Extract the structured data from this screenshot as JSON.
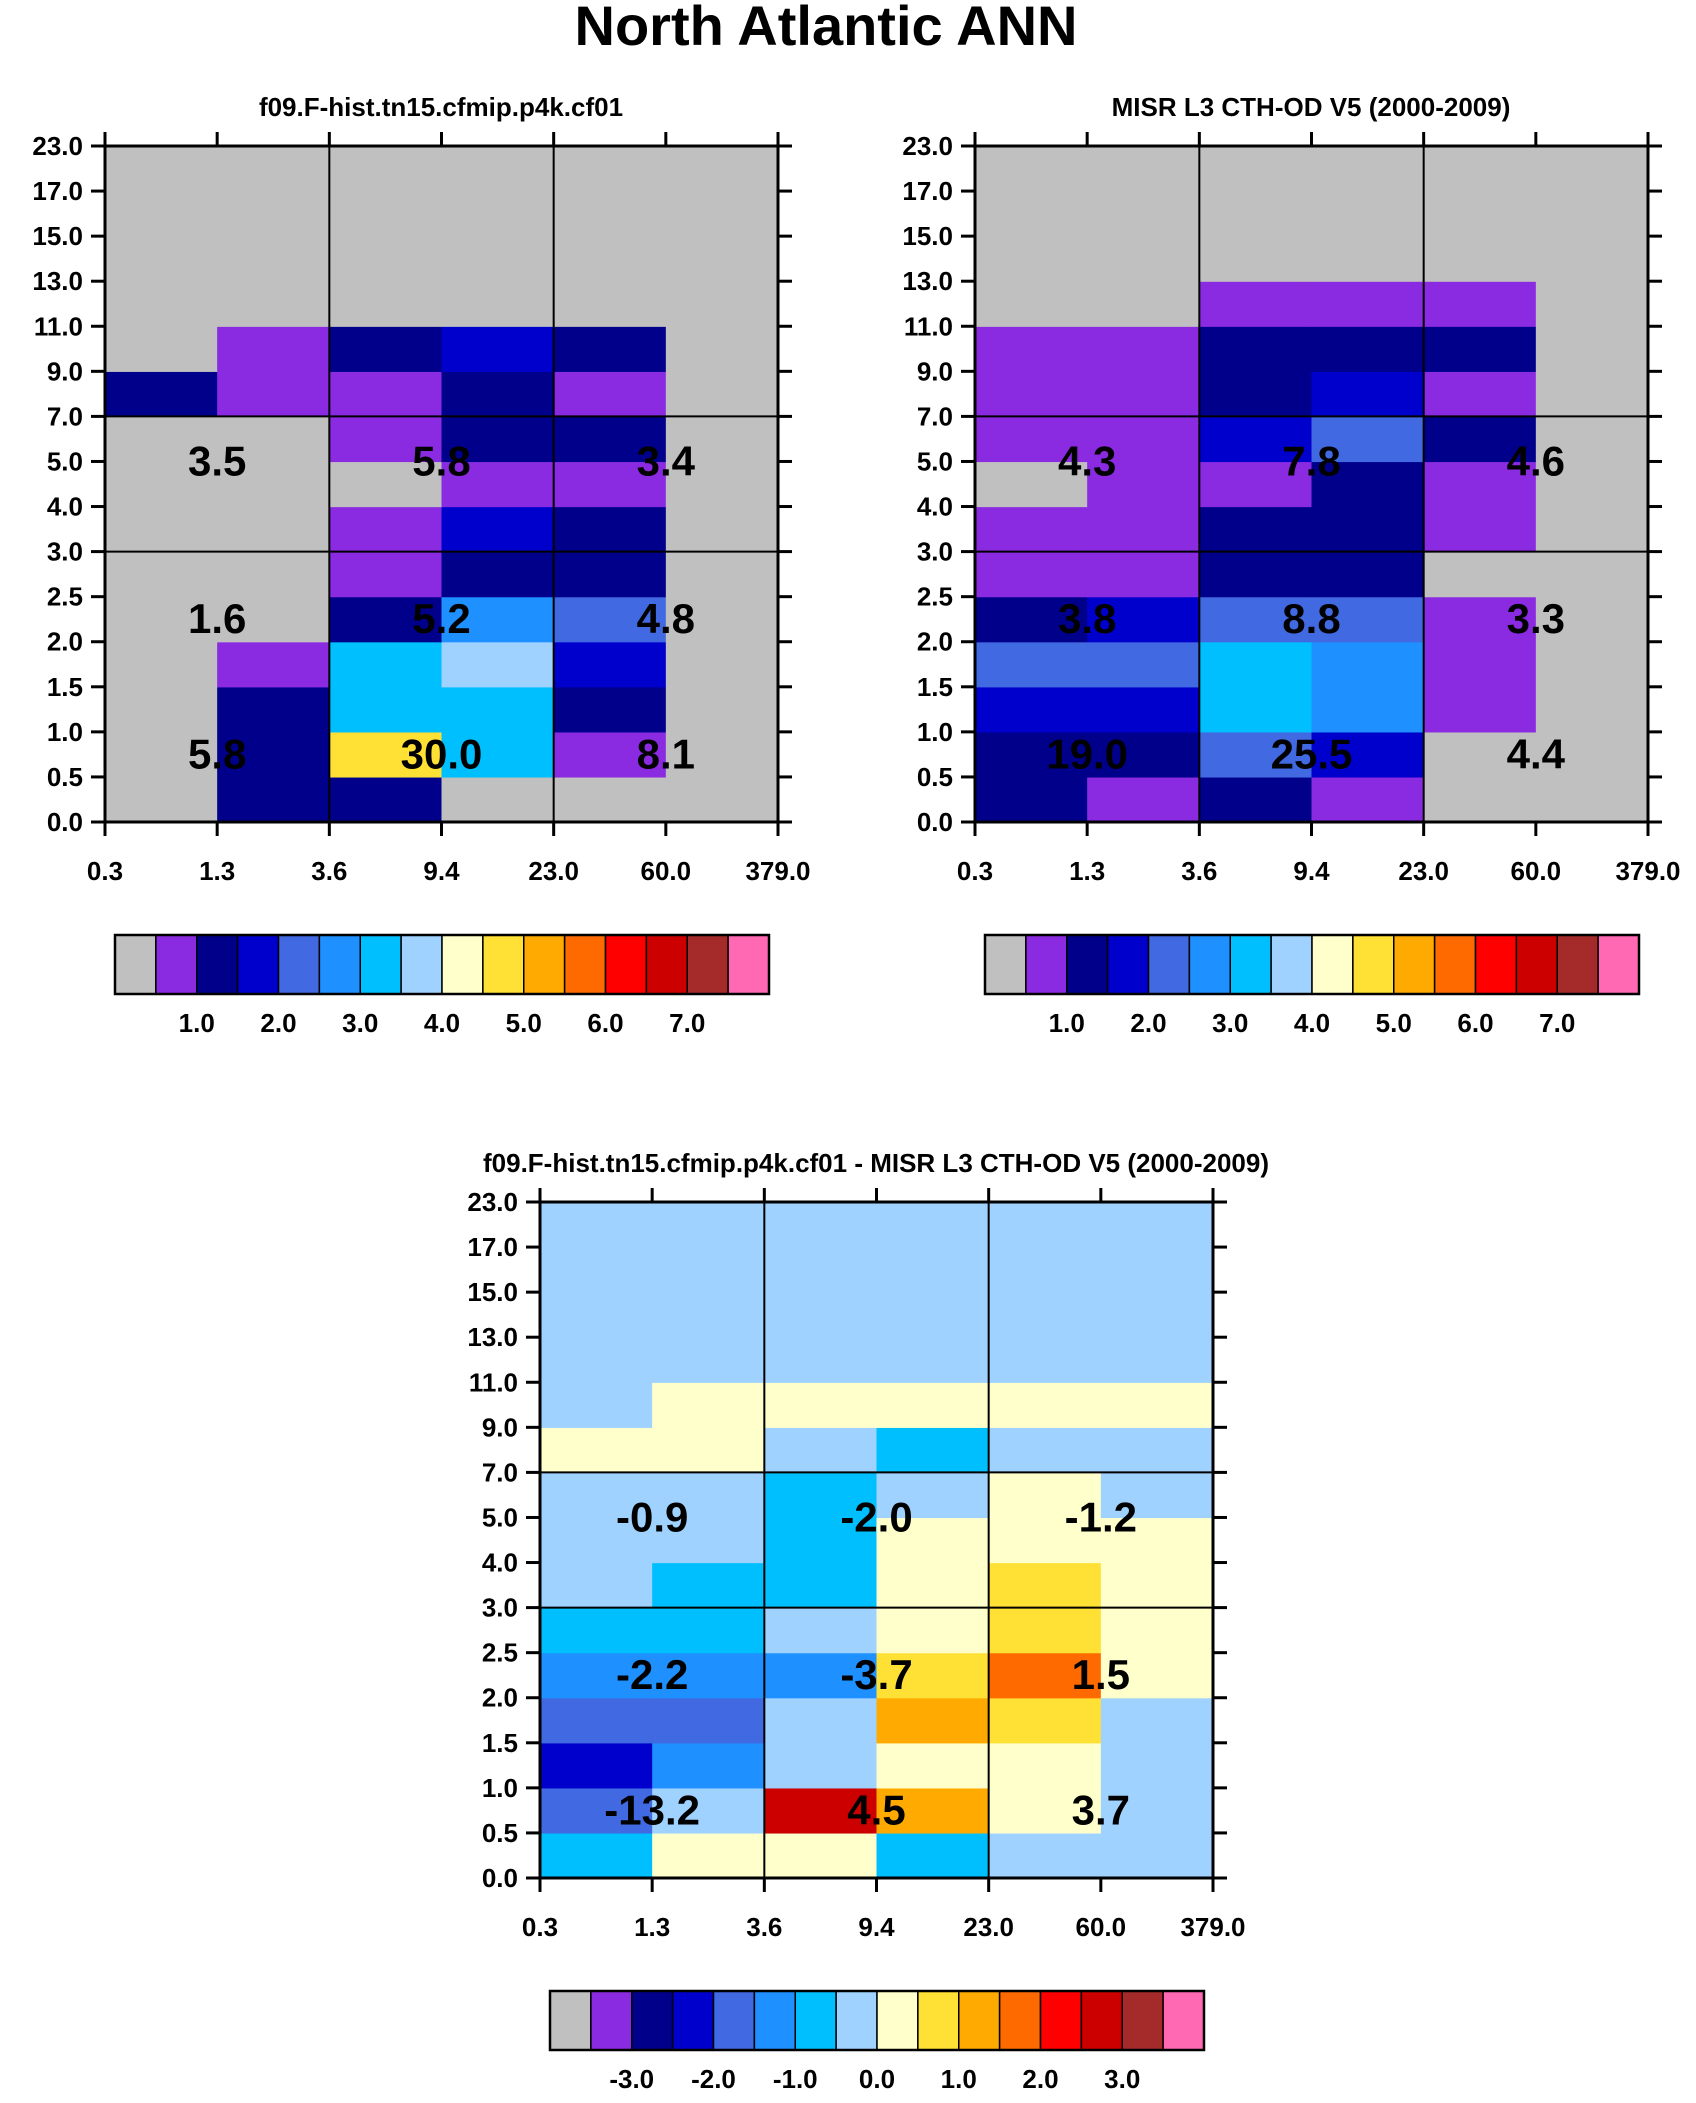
{
  "title": "North Atlantic ANN",
  "colors": {
    "raw": [
      "#c0c0c0",
      "#8a2be2",
      "#00008b",
      "#0000cd",
      "#4169e1",
      "#1e90ff",
      "#00bfff",
      "#a0d2ff",
      "#ffffcc",
      "#ffe034",
      "#ffaa00",
      "#ff6a00",
      "#ff0000",
      "#cd0000",
      "#a52a2a",
      "#ff69b4"
    ],
    "diff": [
      "#c0c0c0",
      "#8a2be2",
      "#00008b",
      "#0000cd",
      "#4169e1",
      "#1e90ff",
      "#00bfff",
      "#a0d2ff",
      "#ffffcc",
      "#ffe034",
      "#ffaa00",
      "#ff6a00",
      "#ff0000",
      "#cd0000",
      "#a52a2a",
      "#ff69b4"
    ]
  },
  "chart_data": [
    {
      "type": "heatmap",
      "title": "f09.F-hist.tn15.cfmip.p4k.cf01",
      "xticks": [
        "0.3",
        "1.3",
        "3.6",
        "9.4",
        "23.0",
        "60.0",
        "379.0"
      ],
      "yticks": [
        "0.0",
        "0.5",
        "1.0",
        "1.5",
        "2.0",
        "2.5",
        "3.0",
        "4.0",
        "5.0",
        "7.0",
        "9.0",
        "11.0",
        "13.0",
        "15.0",
        "17.0",
        "23.0"
      ],
      "cells": [
        [
          0,
          2,
          2,
          0,
          0,
          0
        ],
        [
          0,
          2,
          9,
          6,
          1,
          0
        ],
        [
          0,
          2,
          6,
          6,
          2,
          0
        ],
        [
          0,
          1,
          6,
          7,
          3,
          0
        ],
        [
          0,
          0,
          2,
          5,
          4,
          0
        ],
        [
          0,
          0,
          1,
          2,
          2,
          0
        ],
        [
          0,
          0,
          1,
          3,
          2,
          0
        ],
        [
          0,
          0,
          0,
          1,
          1,
          0
        ],
        [
          0,
          0,
          1,
          2,
          2,
          0
        ],
        [
          2,
          1,
          1,
          2,
          1,
          0
        ],
        [
          0,
          1,
          2,
          3,
          2,
          0
        ],
        [
          0,
          0,
          0,
          0,
          0,
          0
        ],
        [
          0,
          0,
          0,
          0,
          0,
          0
        ],
        [
          0,
          0,
          0,
          0,
          0,
          0
        ],
        [
          0,
          0,
          0,
          0,
          0,
          0
        ]
      ],
      "block_values": [
        [
          "5.8",
          "30.0",
          "8.1"
        ],
        [
          "1.6",
          "5.2",
          "4.8"
        ],
        [
          "3.5",
          "5.8",
          "3.4"
        ]
      ],
      "colorbar": {
        "labels": [
          "1.0",
          "2.0",
          "3.0",
          "4.0",
          "5.0",
          "6.0",
          "7.0"
        ]
      }
    },
    {
      "type": "heatmap",
      "title": "MISR L3 CTH-OD V5 (2000-2009)",
      "xticks": [
        "0.3",
        "1.3",
        "3.6",
        "9.4",
        "23.0",
        "60.0",
        "379.0"
      ],
      "yticks": [
        "0.0",
        "0.5",
        "1.0",
        "1.5",
        "2.0",
        "2.5",
        "3.0",
        "4.0",
        "5.0",
        "7.0",
        "9.0",
        "11.0",
        "13.0",
        "15.0",
        "17.0",
        "23.0"
      ],
      "cells": [
        [
          2,
          1,
          2,
          1,
          0,
          0
        ],
        [
          2,
          2,
          4,
          3,
          0,
          0
        ],
        [
          3,
          3,
          6,
          5,
          1,
          0
        ],
        [
          4,
          4,
          6,
          5,
          1,
          0
        ],
        [
          2,
          3,
          4,
          4,
          1,
          0
        ],
        [
          1,
          1,
          2,
          2,
          0,
          0
        ],
        [
          1,
          1,
          2,
          2,
          1,
          0
        ],
        [
          0,
          1,
          1,
          2,
          1,
          0
        ],
        [
          1,
          1,
          3,
          4,
          2,
          0
        ],
        [
          1,
          1,
          2,
          3,
          1,
          0
        ],
        [
          1,
          1,
          2,
          2,
          2,
          0
        ],
        [
          0,
          0,
          1,
          1,
          1,
          0
        ],
        [
          0,
          0,
          0,
          0,
          0,
          0
        ],
        [
          0,
          0,
          0,
          0,
          0,
          0
        ],
        [
          0,
          0,
          0,
          0,
          0,
          0
        ]
      ],
      "block_values": [
        [
          "19.0",
          "25.5",
          "4.4"
        ],
        [
          "3.8",
          "8.8",
          "3.3"
        ],
        [
          "4.3",
          "7.8",
          "4.6"
        ]
      ],
      "colorbar": {
        "labels": [
          "1.0",
          "2.0",
          "3.0",
          "4.0",
          "5.0",
          "6.0",
          "7.0"
        ]
      }
    },
    {
      "type": "heatmap",
      "title": "f09.F-hist.tn15.cfmip.p4k.cf01 - MISR L3 CTH-OD V5 (2000-2009)",
      "xticks": [
        "0.3",
        "1.3",
        "3.6",
        "9.4",
        "23.0",
        "60.0",
        "379.0"
      ],
      "yticks": [
        "0.0",
        "0.5",
        "1.0",
        "1.5",
        "2.0",
        "2.5",
        "3.0",
        "4.0",
        "5.0",
        "7.0",
        "9.0",
        "11.0",
        "13.0",
        "15.0",
        "17.0",
        "23.0"
      ],
      "cells": [
        [
          6,
          8,
          8,
          6,
          7,
          7
        ],
        [
          4,
          7,
          13,
          10,
          8,
          7
        ],
        [
          3,
          5,
          7,
          8,
          8,
          7
        ],
        [
          4,
          4,
          7,
          10,
          9,
          7
        ],
        [
          5,
          5,
          5,
          9,
          11,
          8
        ],
        [
          6,
          6,
          7,
          8,
          9,
          8
        ],
        [
          7,
          6,
          6,
          8,
          9,
          8
        ],
        [
          7,
          7,
          6,
          8,
          8,
          8
        ],
        [
          7,
          7,
          6,
          7,
          8,
          7
        ],
        [
          8,
          8,
          7,
          6,
          7,
          7
        ],
        [
          7,
          8,
          8,
          8,
          8,
          8
        ],
        [
          7,
          7,
          7,
          7,
          7,
          7
        ],
        [
          7,
          7,
          7,
          7,
          7,
          7
        ],
        [
          7,
          7,
          7,
          7,
          7,
          7
        ],
        [
          7,
          7,
          7,
          7,
          7,
          7
        ]
      ],
      "block_values": [
        [
          "-13.2",
          "4.5",
          "3.7"
        ],
        [
          "-2.2",
          "-3.7",
          "1.5"
        ],
        [
          "-0.9",
          "-2.0",
          "-1.2"
        ]
      ],
      "colorbar": {
        "labels": [
          "-3.0",
          "-2.0",
          "-1.0",
          "0.0",
          "1.0",
          "2.0",
          "3.0"
        ]
      }
    }
  ]
}
